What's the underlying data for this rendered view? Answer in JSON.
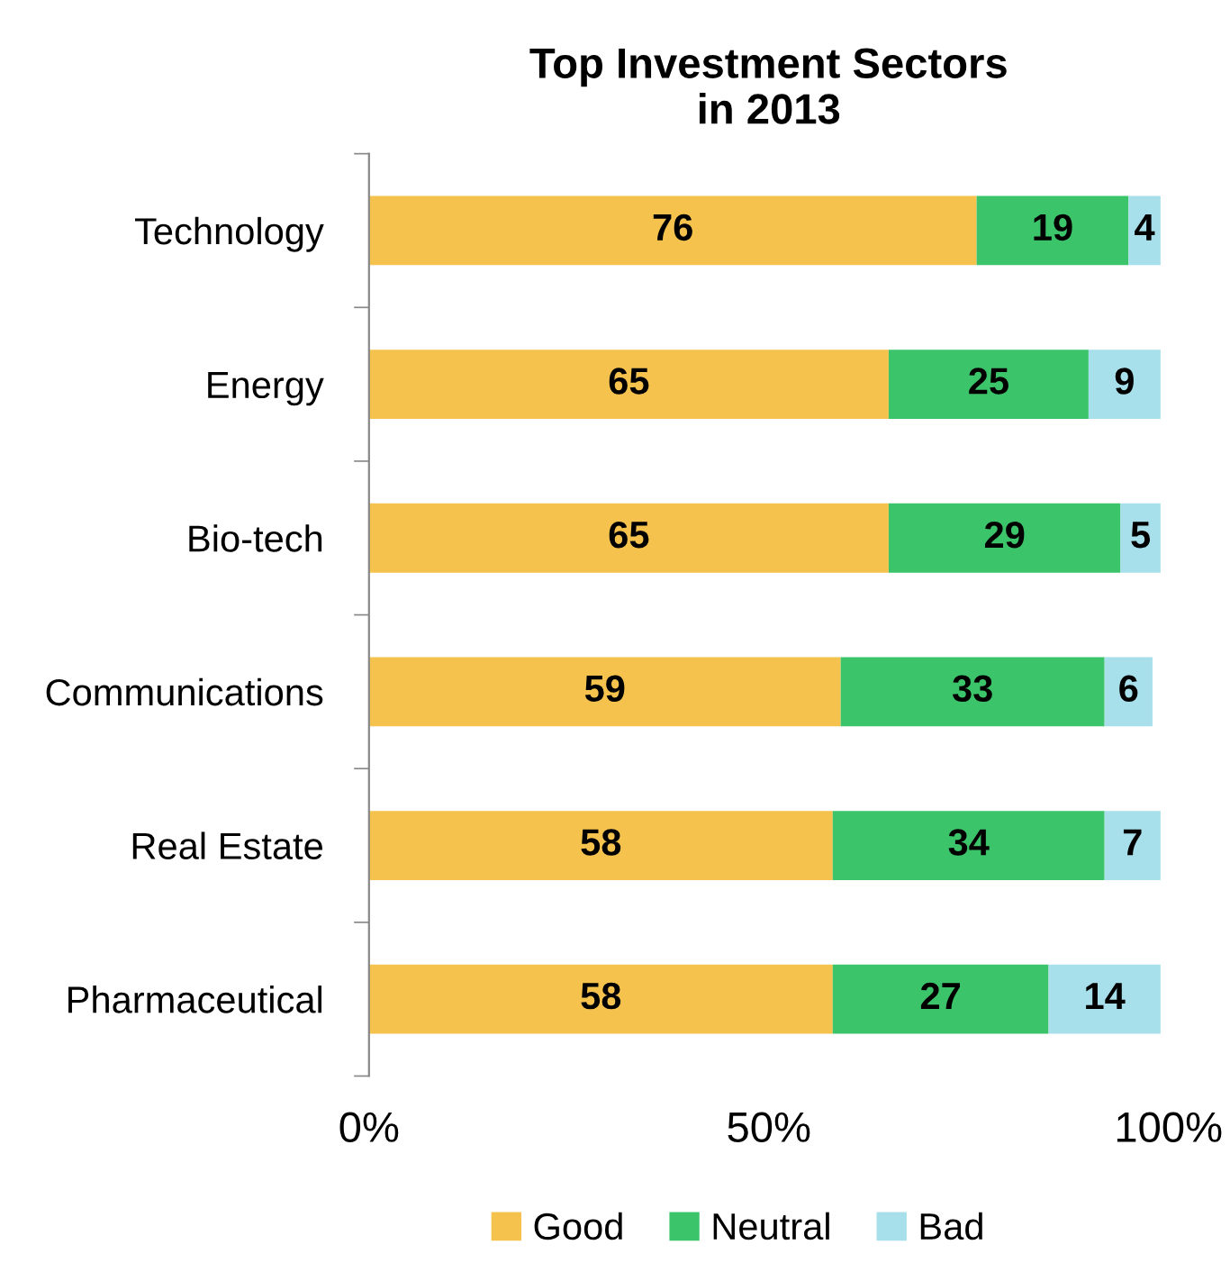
{
  "chart_data": {
    "type": "bar",
    "orientation": "horizontal",
    "stacked": true,
    "title": "Top Investment Sectors\nin 2013",
    "categories": [
      "Technology",
      "Energy",
      "Bio-tech",
      "Communications",
      "Real Estate",
      "Pharmaceutical"
    ],
    "series": [
      {
        "name": "Good",
        "color": "#f5c24e",
        "values": [
          76,
          65,
          65,
          59,
          58,
          58
        ]
      },
      {
        "name": "Neutral",
        "color": "#3cc46a",
        "values": [
          19,
          25,
          29,
          33,
          34,
          27
        ]
      },
      {
        "name": "Bad",
        "color": "#a7dfea",
        "values": [
          4,
          9,
          5,
          6,
          7,
          14
        ]
      }
    ],
    "xlim": [
      0,
      100
    ],
    "xticks": [
      {
        "value": 0,
        "label": "0%"
      },
      {
        "value": 50,
        "label": "50%"
      },
      {
        "value": 100,
        "label": "100%"
      }
    ],
    "data_labels": true,
    "legend": "bottom",
    "grid": false
  }
}
